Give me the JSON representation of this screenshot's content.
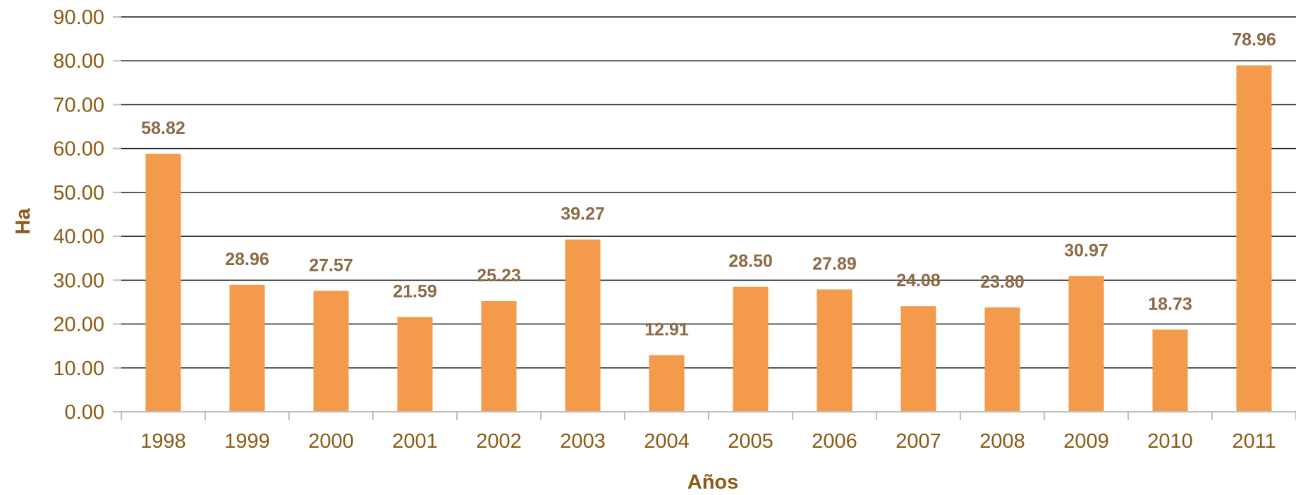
{
  "chart_data": {
    "type": "bar",
    "categories": [
      "1998",
      "1999",
      "2000",
      "2001",
      "2002",
      "2003",
      "2004",
      "2005",
      "2006",
      "2007",
      "2008",
      "2009",
      "2010",
      "2011"
    ],
    "values": [
      58.82,
      28.96,
      27.57,
      21.59,
      25.23,
      39.27,
      12.91,
      28.5,
      27.89,
      24.08,
      23.8,
      30.97,
      18.73,
      78.96
    ],
    "value_labels": [
      "58.82",
      "28.96",
      "27.57",
      "21.59",
      "25.23",
      "39.27",
      "12.91",
      "28.50",
      "27.89",
      "24.08",
      "23.80",
      "30.97",
      "18.73",
      "78.96"
    ],
    "y_ticks": [
      "0.00",
      "10.00",
      "20.00",
      "30.00",
      "40.00",
      "50.00",
      "60.00",
      "70.00",
      "80.00",
      "90.00"
    ],
    "ylim": [
      0,
      90
    ],
    "xlabel": "Años",
    "ylabel": "Ha",
    "grid": true,
    "bar_color": "#F39A4B",
    "text_color": "#8B5A14",
    "label_color": "#8B6A45"
  }
}
